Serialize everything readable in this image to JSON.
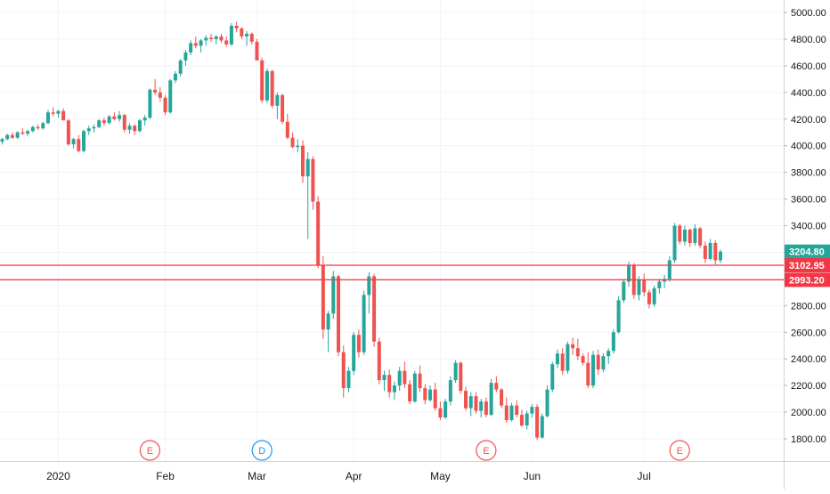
{
  "chart_data": {
    "type": "candlestick",
    "title": "",
    "xlabel": "",
    "ylabel": "",
    "ylim": [
      1650,
      5100
    ],
    "y_ticks": [
      1800,
      2000,
      2200,
      2400,
      2600,
      2800,
      3000,
      3200,
      3400,
      3600,
      3800,
      4000,
      4200,
      4400,
      4600,
      4800,
      5000
    ],
    "x_tick_labels": [
      {
        "label": "2020",
        "bar": 11
      },
      {
        "label": "Feb",
        "bar": 32
      },
      {
        "label": "Mar",
        "bar": 50
      },
      {
        "label": "Apr",
        "bar": 69
      },
      {
        "label": "May",
        "bar": 86
      },
      {
        "label": "Jun",
        "bar": 104
      },
      {
        "label": "Jul",
        "bar": 126
      }
    ],
    "grid": true,
    "colors": {
      "up": "#26a69a",
      "down": "#ef5350",
      "grid": "#f0f3fa",
      "axis_text": "#131722",
      "level_line": "#f23645"
    },
    "price_labels": [
      {
        "value": 3204.8,
        "text": "3204.80",
        "color": "#26a69a"
      },
      {
        "value": 3102.95,
        "text": "3102.95",
        "color": "#f23645"
      },
      {
        "value": 2993.2,
        "text": "2993.20",
        "color": "#f23645"
      }
    ],
    "level_lines": [
      3102.95,
      2993.2
    ],
    "event_markers": [
      {
        "label": "E",
        "bar": 29,
        "color": "#ef5350"
      },
      {
        "label": "D",
        "bar": 51,
        "color": "#2196f3"
      },
      {
        "label": "E",
        "bar": 95,
        "color": "#ef5350"
      },
      {
        "label": "E",
        "bar": 133,
        "color": "#ef5350"
      }
    ],
    "candles": [
      [
        4030,
        4060,
        4010,
        4050
      ],
      [
        4050,
        4090,
        4040,
        4080
      ],
      [
        4080,
        4100,
        4050,
        4060
      ],
      [
        4060,
        4110,
        4050,
        4100
      ],
      [
        4100,
        4130,
        4080,
        4090
      ],
      [
        4090,
        4120,
        4070,
        4110
      ],
      [
        4110,
        4150,
        4100,
        4140
      ],
      [
        4140,
        4160,
        4120,
        4130
      ],
      [
        4130,
        4180,
        4120,
        4170
      ],
      [
        4170,
        4270,
        4160,
        4250
      ],
      [
        4250,
        4290,
        4220,
        4240
      ],
      [
        4240,
        4270,
        4210,
        4260
      ],
      [
        4260,
        4280,
        4220,
        4190
      ],
      [
        4190,
        4200,
        4000,
        4010
      ],
      [
        4010,
        4060,
        3980,
        4050
      ],
      [
        4050,
        4080,
        3950,
        3960
      ],
      [
        3960,
        4120,
        3950,
        4110
      ],
      [
        4110,
        4150,
        4080,
        4130
      ],
      [
        4130,
        4160,
        4100,
        4140
      ],
      [
        4140,
        4200,
        4130,
        4190
      ],
      [
        4190,
        4210,
        4150,
        4170
      ],
      [
        4170,
        4230,
        4160,
        4220
      ],
      [
        4220,
        4250,
        4190,
        4200
      ],
      [
        4200,
        4260,
        4180,
        4230
      ],
      [
        4230,
        4240,
        4100,
        4120
      ],
      [
        4120,
        4170,
        4090,
        4150
      ],
      [
        4150,
        4160,
        4080,
        4110
      ],
      [
        4110,
        4200,
        4100,
        4190
      ],
      [
        4190,
        4230,
        4150,
        4210
      ],
      [
        4210,
        4430,
        4200,
        4420
      ],
      [
        4420,
        4500,
        4380,
        4400
      ],
      [
        4400,
        4440,
        4330,
        4360
      ],
      [
        4360,
        4380,
        4230,
        4250
      ],
      [
        4250,
        4500,
        4240,
        4490
      ],
      [
        4490,
        4560,
        4470,
        4540
      ],
      [
        4540,
        4650,
        4520,
        4640
      ],
      [
        4640,
        4720,
        4600,
        4700
      ],
      [
        4700,
        4790,
        4680,
        4770
      ],
      [
        4770,
        4820,
        4730,
        4750
      ],
      [
        4750,
        4800,
        4700,
        4790
      ],
      [
        4790,
        4830,
        4750,
        4810
      ],
      [
        4810,
        4840,
        4780,
        4800
      ],
      [
        4800,
        4830,
        4760,
        4820
      ],
      [
        4820,
        4840,
        4770,
        4790
      ],
      [
        4790,
        4820,
        4740,
        4760
      ],
      [
        4760,
        4920,
        4750,
        4900
      ],
      [
        4900,
        4930,
        4850,
        4880
      ],
      [
        4880,
        4890,
        4800,
        4820
      ],
      [
        4820,
        4860,
        4750,
        4840
      ],
      [
        4840,
        4850,
        4760,
        4780
      ],
      [
        4780,
        4800,
        4660,
        4640
      ],
      [
        4640,
        4660,
        4320,
        4340
      ],
      [
        4340,
        4580,
        4320,
        4560
      ],
      [
        4560,
        4570,
        4280,
        4300
      ],
      [
        4300,
        4400,
        4200,
        4380
      ],
      [
        4380,
        4390,
        4160,
        4180
      ],
      [
        4180,
        4240,
        4050,
        4060
      ],
      [
        4060,
        4100,
        3980,
        3990
      ],
      [
        3990,
        4050,
        3950,
        4000
      ],
      [
        4000,
        4040,
        3720,
        3770
      ],
      [
        3770,
        3950,
        3300,
        3900
      ],
      [
        3900,
        3920,
        3520,
        3580
      ],
      [
        3580,
        3620,
        3080,
        3100
      ],
      [
        3100,
        3170,
        2550,
        2620
      ],
      [
        2620,
        2760,
        2450,
        2740
      ],
      [
        2740,
        3060,
        2700,
        3020
      ],
      [
        3020,
        3030,
        2420,
        2450
      ],
      [
        2450,
        2500,
        2110,
        2180
      ],
      [
        2180,
        2340,
        2150,
        2310
      ],
      [
        2310,
        2600,
        2280,
        2580
      ],
      [
        2580,
        2620,
        2410,
        2450
      ],
      [
        2450,
        2910,
        2430,
        2880
      ],
      [
        2880,
        3050,
        2740,
        3020
      ],
      [
        3020,
        3040,
        2490,
        2530
      ],
      [
        2530,
        2560,
        2210,
        2240
      ],
      [
        2240,
        2310,
        2160,
        2280
      ],
      [
        2280,
        2320,
        2110,
        2150
      ],
      [
        2150,
        2230,
        2090,
        2200
      ],
      [
        2200,
        2340,
        2160,
        2310
      ],
      [
        2310,
        2380,
        2180,
        2210
      ],
      [
        2210,
        2240,
        2060,
        2080
      ],
      [
        2080,
        2310,
        2070,
        2290
      ],
      [
        2290,
        2350,
        2150,
        2180
      ],
      [
        2180,
        2210,
        2060,
        2090
      ],
      [
        2090,
        2200,
        2080,
        2170
      ],
      [
        2170,
        2220,
        2010,
        2030
      ],
      [
        2030,
        2080,
        1940,
        1960
      ],
      [
        1960,
        2100,
        1950,
        2080
      ],
      [
        2080,
        2270,
        2050,
        2240
      ],
      [
        2240,
        2390,
        2220,
        2370
      ],
      [
        2370,
        2380,
        2140,
        2160
      ],
      [
        2160,
        2190,
        2010,
        2030
      ],
      [
        2030,
        2150,
        1970,
        2120
      ],
      [
        2120,
        2150,
        1990,
        2010
      ],
      [
        2010,
        2100,
        1960,
        2080
      ],
      [
        2080,
        2110,
        1960,
        1980
      ],
      [
        1980,
        2250,
        1970,
        2220
      ],
      [
        2220,
        2270,
        2150,
        2170
      ],
      [
        2170,
        2180,
        2030,
        2050
      ],
      [
        2050,
        2110,
        1920,
        1940
      ],
      [
        1940,
        2070,
        1930,
        2050
      ],
      [
        2050,
        2090,
        1960,
        1980
      ],
      [
        1980,
        2020,
        1890,
        1900
      ],
      [
        1900,
        2010,
        1870,
        1990
      ],
      [
        1990,
        2060,
        1960,
        2040
      ],
      [
        2040,
        2060,
        1790,
        1810
      ],
      [
        1810,
        1990,
        1800,
        1970
      ],
      [
        1970,
        2200,
        1960,
        2170
      ],
      [
        2170,
        2380,
        2150,
        2360
      ],
      [
        2360,
        2470,
        2330,
        2440
      ],
      [
        2440,
        2480,
        2280,
        2310
      ],
      [
        2310,
        2530,
        2290,
        2510
      ],
      [
        2510,
        2560,
        2430,
        2480
      ],
      [
        2480,
        2550,
        2390,
        2420
      ],
      [
        2420,
        2440,
        2350,
        2370
      ],
      [
        2370,
        2450,
        2180,
        2200
      ],
      [
        2200,
        2460,
        2180,
        2430
      ],
      [
        2430,
        2470,
        2280,
        2320
      ],
      [
        2320,
        2440,
        2300,
        2420
      ],
      [
        2420,
        2480,
        2360,
        2460
      ],
      [
        2460,
        2620,
        2440,
        2600
      ],
      [
        2600,
        2870,
        2590,
        2840
      ],
      [
        2840,
        3000,
        2820,
        2980
      ],
      [
        2980,
        3130,
        2940,
        3100
      ],
      [
        3100,
        3120,
        2850,
        2880
      ],
      [
        2880,
        3020,
        2840,
        2990
      ],
      [
        2990,
        3040,
        2870,
        2900
      ],
      [
        2900,
        2920,
        2780,
        2810
      ],
      [
        2810,
        2950,
        2790,
        2930
      ],
      [
        2930,
        3000,
        2890,
        2980
      ],
      [
        2980,
        3030,
        2930,
        3000
      ],
      [
        3000,
        3170,
        2980,
        3140
      ],
      [
        3140,
        3420,
        3120,
        3400
      ],
      [
        3400,
        3410,
        3260,
        3280
      ],
      [
        3280,
        3400,
        3250,
        3370
      ],
      [
        3370,
        3380,
        3240,
        3270
      ],
      [
        3270,
        3410,
        3250,
        3380
      ],
      [
        3380,
        3390,
        3230,
        3250
      ],
      [
        3250,
        3280,
        3120,
        3150
      ],
      [
        3150,
        3300,
        3140,
        3270
      ],
      [
        3270,
        3290,
        3110,
        3140
      ],
      [
        3140,
        3220,
        3120,
        3204.8
      ]
    ]
  }
}
